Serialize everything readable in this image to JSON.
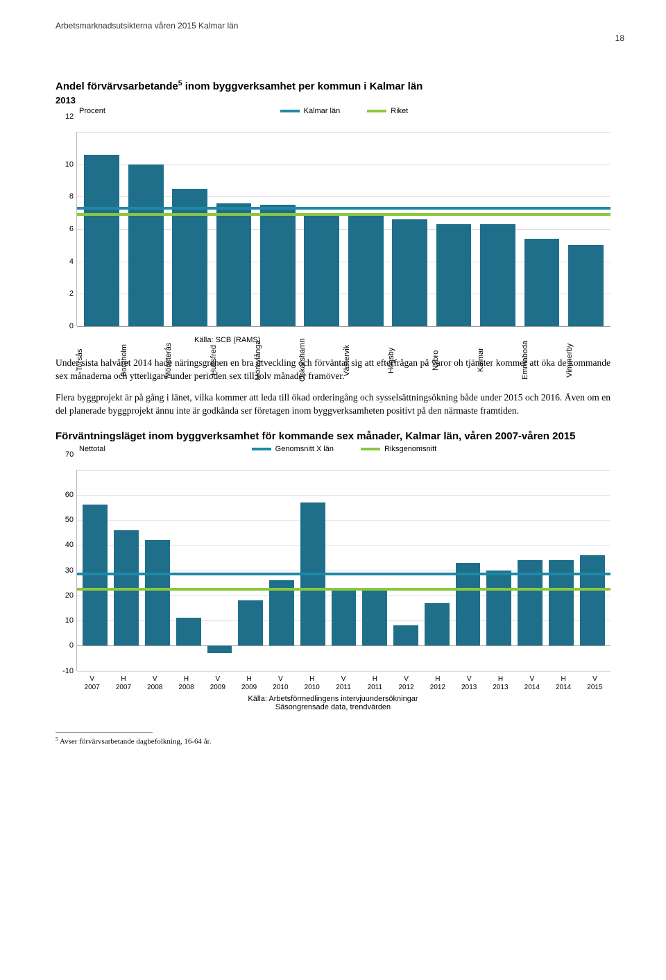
{
  "page": {
    "header": "Arbetsmarknadsutsikterna våren 2015 Kalmar län",
    "page_number": "18"
  },
  "chart1": {
    "type": "bar",
    "title_prefix": "Andel förvärvsarbetande",
    "title_sup": "5",
    "title_suffix": " inom byggverksamhet per kommun i Kalmar län",
    "year": "2013",
    "y_axis_sub": "Procent",
    "y_tick_at_12": "12",
    "legend": {
      "a_label": "Kalmar län",
      "a_color": "#1f88a7",
      "b_label": "Riket",
      "b_color": "#8cc63f"
    },
    "ylim": [
      0,
      12
    ],
    "ytick_step": 2,
    "yticks": [
      "0",
      "2",
      "4",
      "6",
      "8",
      "10",
      "12"
    ],
    "categories": [
      "Torsås",
      "Borgholm",
      "Mönsterås",
      "Hultsfred",
      "Mörbylånga",
      "Oskarshamn",
      "Västervik",
      "Högsby",
      "Nybro",
      "Kalmar",
      "Emmaboda",
      "Vimmerby"
    ],
    "values": [
      10.6,
      10.0,
      8.5,
      7.6,
      7.5,
      7.0,
      6.8,
      6.6,
      6.3,
      6.3,
      5.4,
      5.0
    ],
    "bar_color": "#1f6f8b",
    "reflines": {
      "kalmar_lan": 7.2,
      "riket": 6.8
    },
    "background_color": "#ffffff",
    "grid_color": "#dcdcdc",
    "source_label": "Källa: SCB (RAMS)"
  },
  "body": {
    "p1": "Under sista halvåret 2014 hade näringsgrenen en bra utveckling och förväntar sig att efterfrågan på varor oh tjänster kommer att öka de kommande sex månaderna och ytterligare under perioden sex till tolv månader framöver.",
    "p2": "Flera byggprojekt är på gång i länet, vilka kommer att leda till ökad orderingång och sysselsättningsökning både under 2015 och 2016. Även om en del planerade byggprojekt ännu inte är godkända ser företagen inom byggverksamheten positivt på den närmaste framtiden."
  },
  "chart2": {
    "type": "bar",
    "title": "Förväntningsläget inom byggverksamhet för kommande sex månader, Kalmar län, våren 2007-våren 2015",
    "y_axis_sub": "Nettotal",
    "y_tick_at_70": "70",
    "legend": {
      "a_label": "Genomsnitt X län",
      "a_color": "#1f88a7",
      "b_label": "Riksgenomsnitt",
      "b_color": "#8cc63f"
    },
    "ylim": [
      -10,
      70
    ],
    "ytick_step": 10,
    "yticks": [
      "-10",
      "0",
      "10",
      "20",
      "30",
      "40",
      "50",
      "60",
      "70"
    ],
    "categories_top": [
      "V",
      "H",
      "V",
      "H",
      "V",
      "H",
      "V",
      "H",
      "V",
      "H",
      "V",
      "H",
      "V",
      "H",
      "V",
      "H",
      "V"
    ],
    "categories_bot": [
      "2007",
      "2007",
      "2008",
      "2008",
      "2009",
      "2009",
      "2010",
      "2010",
      "2011",
      "2011",
      "2012",
      "2012",
      "2013",
      "2013",
      "2014",
      "2014",
      "2015"
    ],
    "values": [
      56,
      46,
      42,
      11,
      -3,
      18,
      26,
      57,
      22,
      22,
      8,
      17,
      33,
      30,
      34,
      34,
      36
    ],
    "bar_color": "#1f6f8b",
    "reflines": {
      "genomsnitt_x_lan": 28,
      "riksgenomsnitt": 22
    },
    "source_line1": "Källa: Arbetsförmedlingens intervjuundersökningar",
    "source_line2": "Säsongrensade data, trendvärden",
    "background_color": "#ffffff",
    "grid_color": "#dcdcdc"
  },
  "footnote": {
    "marker": "5",
    "text": " Avser förvärvsarbetande dagbefolkning, 16-64 år."
  }
}
